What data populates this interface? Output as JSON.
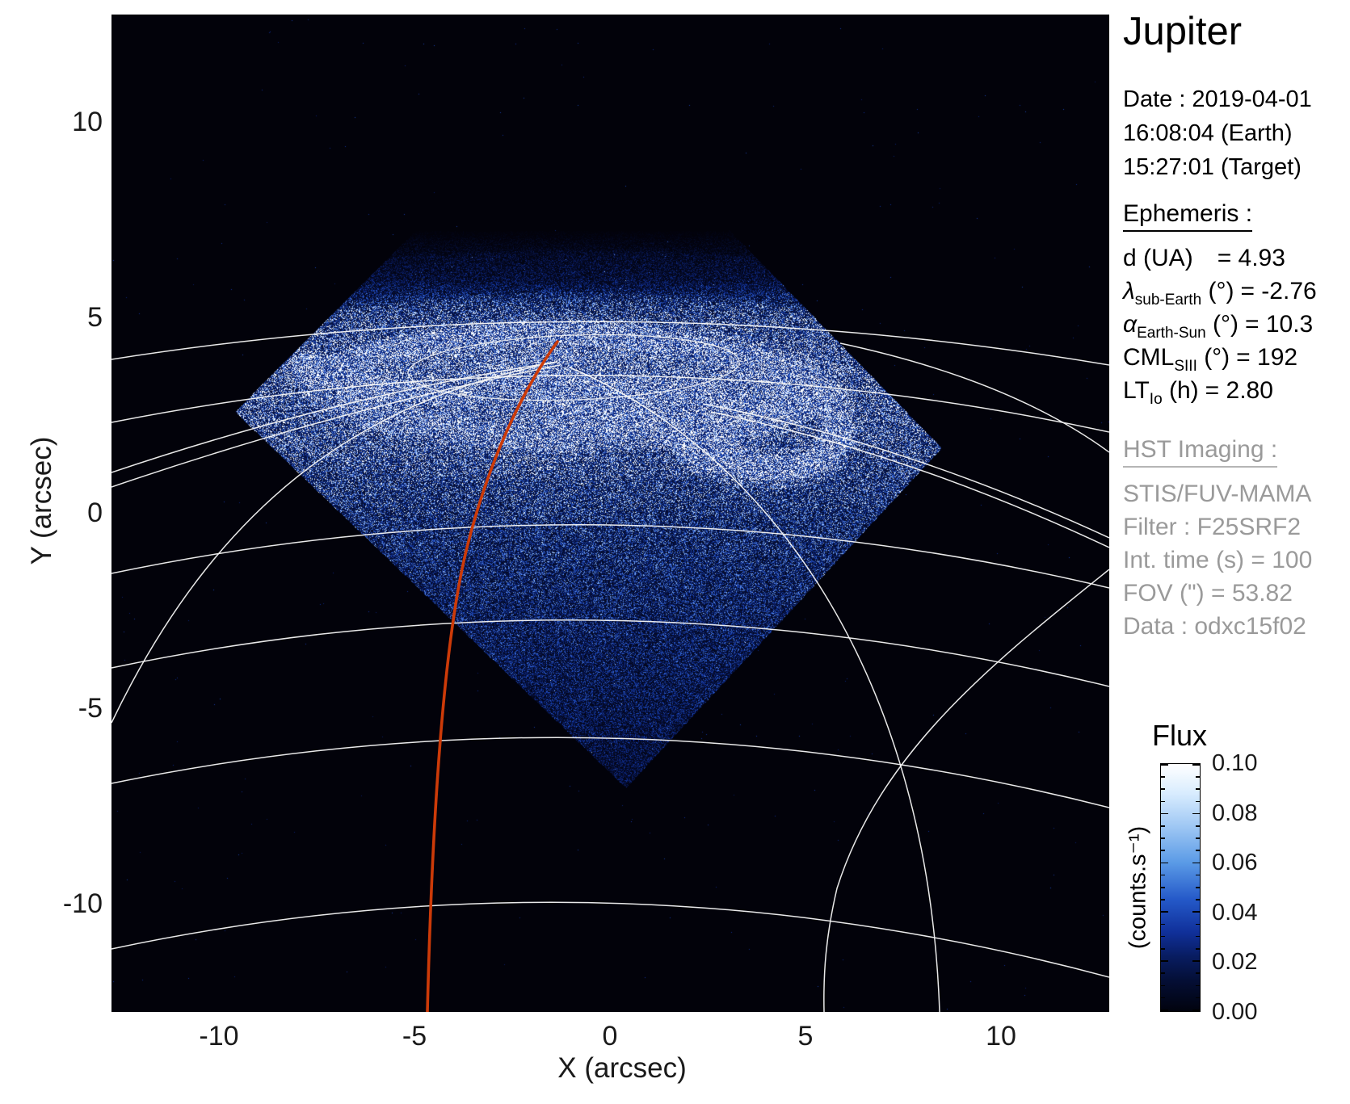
{
  "header": {
    "title": "Jupiter",
    "date_lines": [
      "Date : 2019-04-01",
      "16:08:04 (Earth)",
      "15:27:01 (Target)"
    ]
  },
  "ephemeris": {
    "heading": "Ephemeris :",
    "rows": [
      {
        "sym": "d",
        "it": false,
        "sub": "",
        "mid": " (UA)",
        "tail": "= 4.93",
        "wide": true
      },
      {
        "sym": "λ",
        "it": true,
        "sub": "sub-Earth",
        "mid": " (°)",
        "tail": "= -2.76",
        "wide": false
      },
      {
        "sym": "α",
        "it": true,
        "sub": "Earth-Sun",
        "mid": " (°)",
        "tail": "= 10.3",
        "wide": false
      },
      {
        "sym": "CML",
        "it": false,
        "sub": "SIII",
        "mid": " (°)",
        "tail": "= 192",
        "wide": false
      },
      {
        "sym": "LT",
        "it": false,
        "sub": "Io",
        "mid": " (h)",
        "tail": "= 2.80",
        "wide": false
      }
    ]
  },
  "hst": {
    "heading": "HST Imaging :",
    "lines": [
      "STIS/FUV-MAMA",
      "Filter : F25SRF2",
      "Int. time (s) = 100",
      "FOV (\") = 53.82",
      "Data : odxc15f02"
    ]
  },
  "colorbar": {
    "title": "Flux",
    "unit": "(counts.s⁻¹)",
    "tick_labels": [
      "0.10",
      "0.08",
      "0.06",
      "0.04",
      "0.02",
      "0.00"
    ]
  },
  "axes": {
    "xlabel": "X (arcsec)",
    "ylabel": "Y (arcsec)",
    "x_tick_labels": [
      "-10",
      "-5",
      "0",
      "5",
      "10"
    ],
    "y_tick_labels": [
      "10",
      "5",
      "0",
      "-5",
      "-10"
    ]
  },
  "chart_data": {
    "type": "heatmap",
    "title": "Jupiter",
    "xlabel": "X (arcsec)",
    "ylabel": "Y (arcsec)",
    "xlim": [
      -12.8,
      12.8
    ],
    "ylim": [
      -12.8,
      12.8
    ],
    "xticks": [
      -10,
      -5,
      0,
      5,
      10
    ],
    "yticks": [
      10,
      5,
      0,
      -5,
      -10
    ],
    "grid": "planetary graticule (white latitude/longitude arcs), no cartesian grid",
    "colorbar": {
      "label": "Flux",
      "unit": "counts.s⁻¹",
      "min": 0.0,
      "max": 0.1,
      "ticks": [
        0.1,
        0.08,
        0.06,
        0.04,
        0.02,
        0.0
      ],
      "position": "right"
    },
    "description": "HST STIS/FUV-MAMA far-UV image of Jupiter's northern aurora. The detector footprint is a 45°-rotated square filled with blue Poisson speckle noise; the bright white auroral main oval (with a dawn arc at left and a bright curled hook on the dusk side) sits near the top; a white planetary graticule and a red SIII meridian line are overplotted.",
    "aurora_oval": {
      "center_arcsec": [
        -0.9,
        3.7
      ],
      "rx_arcsec": 6.8,
      "ry_arcsec": 1.7
    },
    "fov_diamond_vertices_arcsec": [
      [
        -9.6,
        2.6
      ],
      [
        -0.9,
        11.3
      ],
      [
        8.6,
        1.7
      ],
      [
        0.4,
        -7.0
      ]
    ],
    "red_meridian_endpoints_arcsec": [
      [
        -1.3,
        4.4
      ],
      [
        -4.7,
        -12.8
      ]
    ],
    "flux_range_counts_per_s": [
      0.0,
      0.1
    ]
  },
  "colors": {
    "background": "#ffffff",
    "plot_bg": "#010208",
    "grid_line": "#f5f5f5",
    "red_line": "#cc3a08",
    "muted_text": "#9a9a9a",
    "text": "#000000"
  }
}
